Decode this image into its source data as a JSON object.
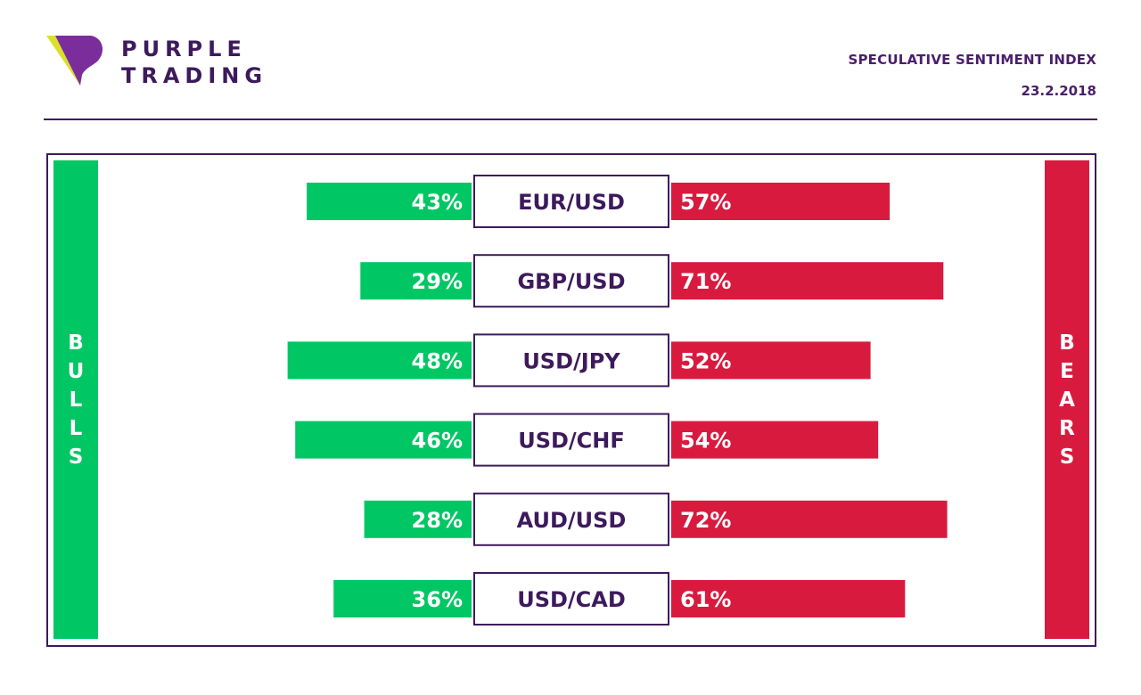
{
  "header": {
    "brand_line1": "PURPLE",
    "brand_line2": "TRADING",
    "title": "SPECULATIVE SENTIMENT INDEX",
    "date": "23.2.2018"
  },
  "colors": {
    "bulls": "#00c764",
    "bears": "#d91a3f",
    "purple": "#3d1a5c",
    "logo_purple": "#7b2d9c",
    "logo_yellow": "#d9e02a"
  },
  "icons": {
    "logo": "purple-trading-logo-icon"
  },
  "chart_data": {
    "type": "bar",
    "orientation": "horizontal-diverging",
    "bulls_label": "BULLS",
    "bears_label": "BEARS",
    "categories": [
      "EUR/USD",
      "GBP/USD",
      "USD/JPY",
      "USD/CHF",
      "AUD/USD",
      "USD/CAD"
    ],
    "series": [
      {
        "name": "BULLS",
        "values": [
          43,
          29,
          48,
          46,
          28,
          36
        ]
      },
      {
        "name": "BEARS",
        "values": [
          57,
          71,
          52,
          54,
          72,
          61
        ]
      }
    ],
    "value_suffix": "%"
  }
}
